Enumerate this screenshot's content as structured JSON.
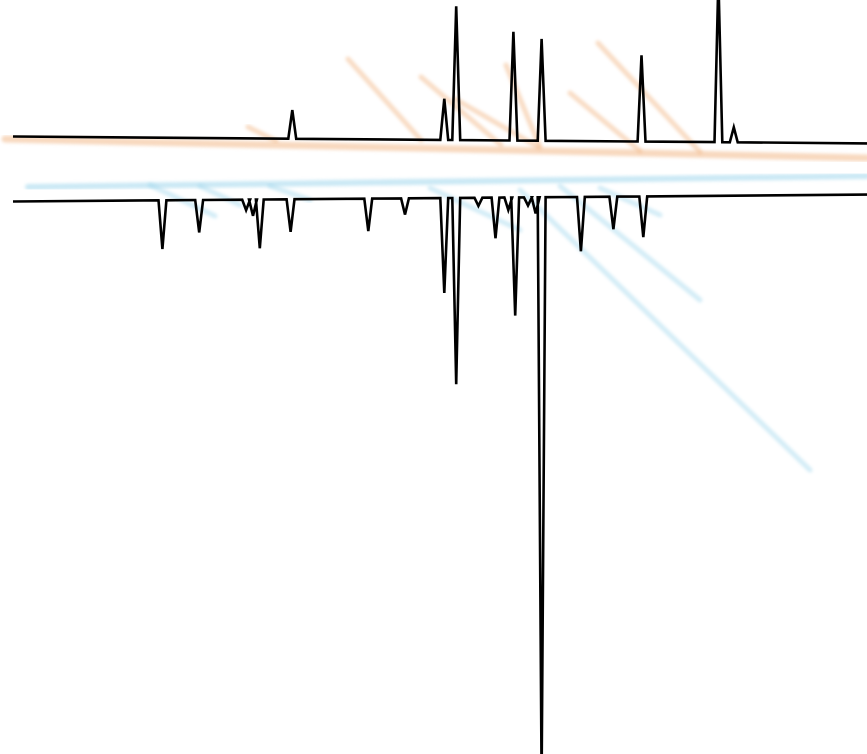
{
  "chart_data": {
    "type": "line",
    "title": "",
    "xlabel": "",
    "ylabel": "",
    "grid": false,
    "legend": "none",
    "x_range": [
      0,
      1
    ],
    "y_range": [
      -1,
      1
    ],
    "colors": {
      "trace": "#000000",
      "top_glow": "#f2b98a",
      "bottom_glow": "#9fd6ec"
    },
    "series": [
      {
        "baseline_start": 0.052,
        "baseline_end": 0.041,
        "peaks": [
          {
            "x": 0.327,
            "y": 0.046
          },
          {
            "x": 0.505,
            "y": 0.066
          },
          {
            "x": 0.519,
            "y": 0.214
          },
          {
            "x": 0.586,
            "y": 0.174
          },
          {
            "x": 0.619,
            "y": 0.163
          },
          {
            "x": 0.736,
            "y": 0.138
          },
          {
            "x": 0.826,
            "y": 0.262
          },
          {
            "x": 0.844,
            "y": 0.024
          }
        ]
      },
      {
        "baseline_start": -0.052,
        "baseline_end": -0.041,
        "peaks": [
          {
            "x": 0.175,
            "y": -0.078
          },
          {
            "x": 0.218,
            "y": -0.052
          },
          {
            "x": 0.273,
            "y": -0.017
          },
          {
            "x": 0.281,
            "y": -0.026
          },
          {
            "x": 0.289,
            "y": -0.078
          },
          {
            "x": 0.325,
            "y": -0.052
          },
          {
            "x": 0.416,
            "y": -0.052
          },
          {
            "x": 0.459,
            "y": -0.026
          },
          {
            "x": 0.505,
            "y": -0.152
          },
          {
            "x": 0.519,
            "y": -0.298
          },
          {
            "x": 0.545,
            "y": -0.013
          },
          {
            "x": 0.565,
            "y": -0.065
          },
          {
            "x": 0.58,
            "y": -0.02
          },
          {
            "x": 0.588,
            "y": -0.189
          },
          {
            "x": 0.603,
            "y": -0.013
          },
          {
            "x": 0.612,
            "y": -0.026
          },
          {
            "x": 0.619,
            "y": -0.93
          },
          {
            "x": 0.665,
            "y": -0.087
          },
          {
            "x": 0.703,
            "y": -0.052
          },
          {
            "x": 0.738,
            "y": -0.065
          }
        ]
      }
    ]
  }
}
